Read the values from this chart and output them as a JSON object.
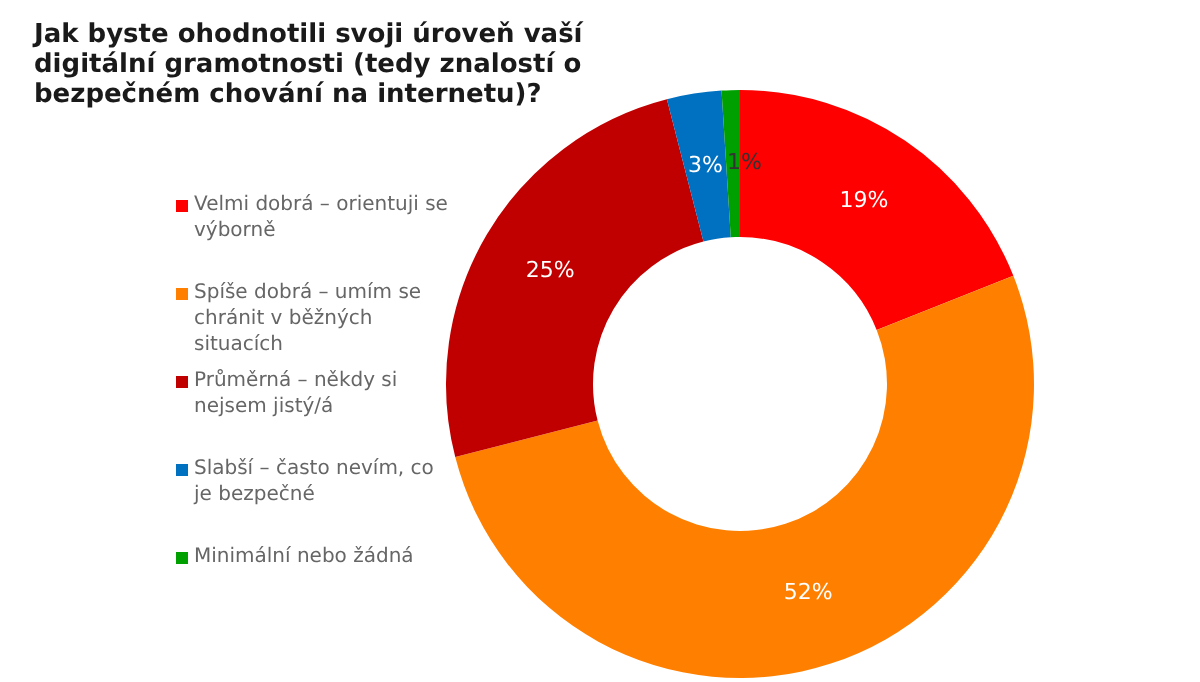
{
  "chart_data": {
    "type": "donut",
    "title": "Jak byste ohodnotili svoji úroveň vaší digitální gramotnosti (tedy znalostí o bezpečném chování na internetu)?",
    "categories": [
      "Velmi dobrá – orientuji se výborně",
      "Spíše dobrá – umím se chránit v běžných situacích",
      "Průměrná – někdy si nejsem jistý/á",
      "Slabší – často nevím, co je bezpečné",
      "Minimální nebo žádná"
    ],
    "values": [
      19,
      52,
      25,
      3,
      1
    ],
    "colors": [
      "#ff0000",
      "#ff8000",
      "#c00000",
      "#0070c0",
      "#00a000"
    ],
    "value_labels": [
      "19%",
      "52%",
      "25%",
      "3%",
      "1%"
    ],
    "legend": "left"
  }
}
